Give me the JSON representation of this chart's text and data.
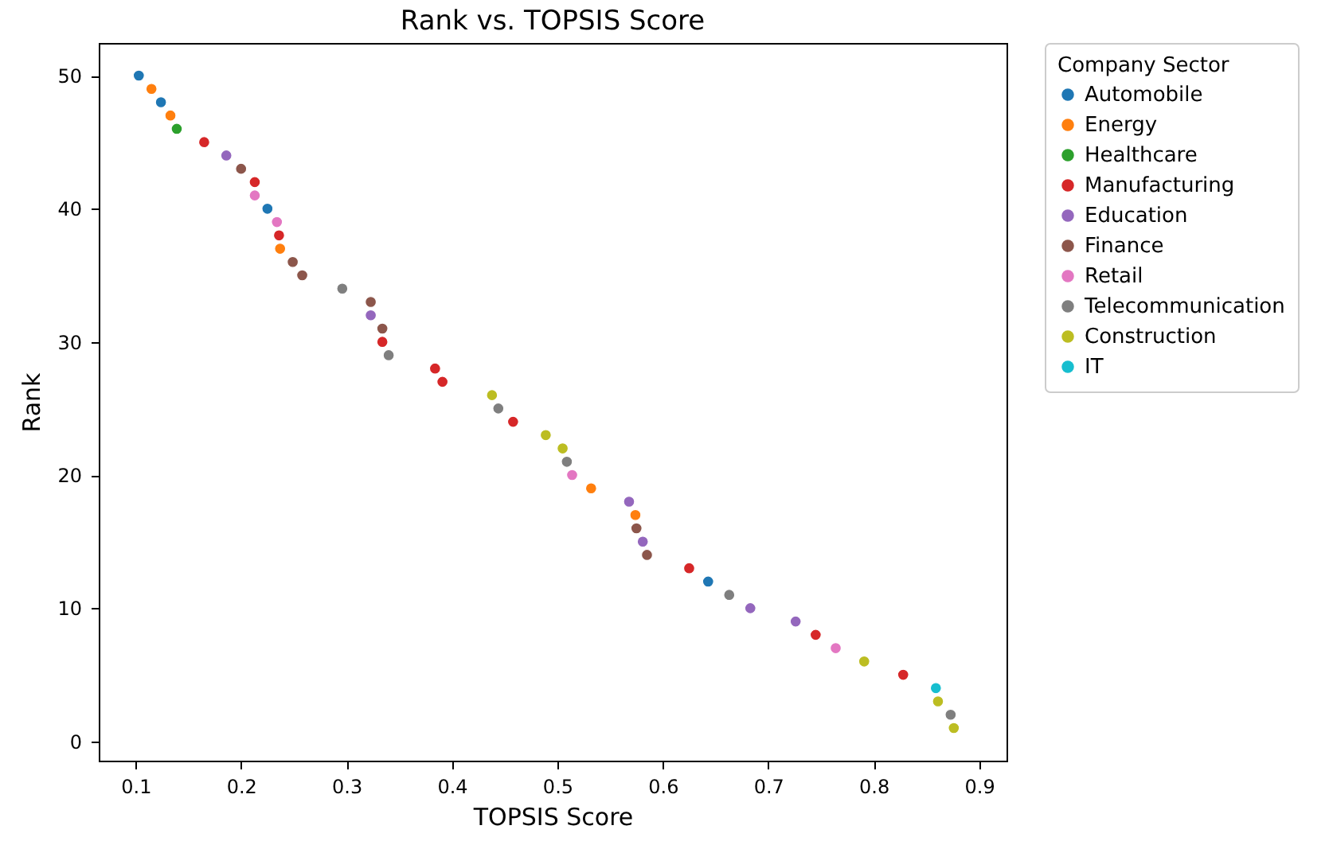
{
  "chart_data": {
    "type": "scatter",
    "title": "Rank vs. TOPSIS Score",
    "xlabel": "TOPSIS Score",
    "ylabel": "Rank",
    "legend_title": "Company Sector",
    "xlim": [
      0.065,
      0.926
    ],
    "xticks": [
      0.1,
      0.2,
      0.3,
      0.4,
      0.5,
      0.6,
      0.7,
      0.8,
      0.9
    ],
    "ylim": [
      -1.45,
      52.45
    ],
    "yticks": [
      0,
      10,
      20,
      30,
      40,
      50
    ],
    "grid": false,
    "legend": "right",
    "marker": "circle",
    "series": [
      {
        "name": "Automobile",
        "color": "#1f77b4",
        "x": [
          0.103,
          0.124,
          0.225,
          0.643
        ],
        "values": [
          50,
          48,
          40,
          12
        ]
      },
      {
        "name": "Energy",
        "color": "#ff7f0e",
        "x": [
          0.115,
          0.133,
          0.237,
          0.532,
          0.574
        ],
        "values": [
          49,
          47,
          37,
          19,
          17
        ]
      },
      {
        "name": "Healthcare",
        "color": "#2ca02c",
        "x": [
          0.139
        ],
        "values": [
          46
        ]
      },
      {
        "name": "Manufacturing",
        "color": "#d62728",
        "x": [
          0.165,
          0.213,
          0.236,
          0.334,
          0.384,
          0.391,
          0.458,
          0.625,
          0.745,
          0.828
        ],
        "values": [
          45,
          42,
          38,
          30,
          28,
          27,
          24,
          13,
          8,
          5
        ]
      },
      {
        "name": "Education",
        "color": "#9467bd",
        "x": [
          0.186,
          0.323,
          0.568,
          0.581,
          0.683,
          0.726
        ],
        "values": [
          44,
          32,
          18,
          15,
          10,
          9
        ]
      },
      {
        "name": "Finance",
        "color": "#8c564b",
        "x": [
          0.2,
          0.249,
          0.258,
          0.323,
          0.334,
          0.575,
          0.585
        ],
        "values": [
          43,
          36,
          35,
          33,
          31,
          16,
          14
        ]
      },
      {
        "name": "Retail",
        "color": "#e377c2",
        "x": [
          0.213,
          0.234,
          0.514,
          0.764
        ],
        "values": [
          41,
          39,
          20,
          7
        ]
      },
      {
        "name": "Telecommunication",
        "color": "#7f7f7f",
        "x": [
          0.296,
          0.34,
          0.444,
          0.509,
          0.663,
          0.873
        ],
        "values": [
          34,
          29,
          25,
          21,
          11,
          2
        ]
      },
      {
        "name": "Construction",
        "color": "#bcbd22",
        "x": [
          0.438,
          0.489,
          0.505,
          0.791,
          0.861,
          0.876
        ],
        "values": [
          26,
          23,
          22,
          6,
          3,
          1
        ]
      },
      {
        "name": "IT",
        "color": "#17becf",
        "x": [
          0.859
        ],
        "values": [
          4
        ]
      }
    ]
  }
}
